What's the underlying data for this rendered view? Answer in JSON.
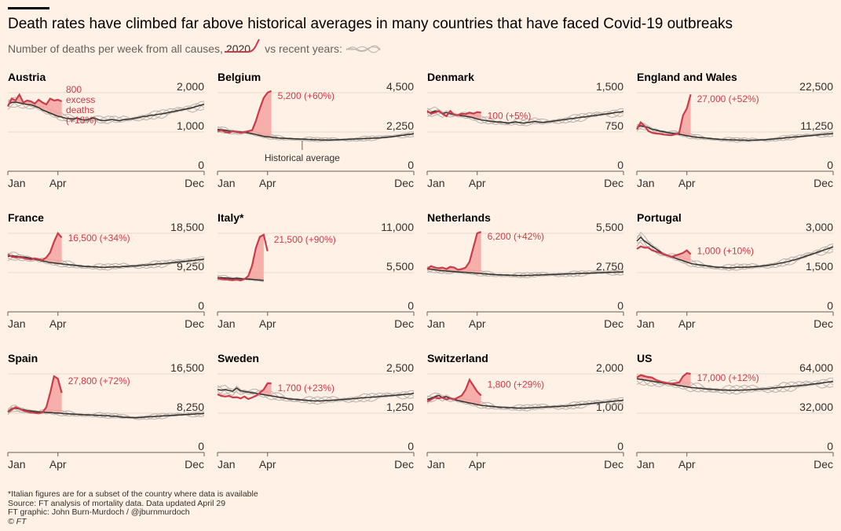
{
  "header": {
    "title": "Death rates have climbed far above historical averages in many countries that have faced Covid-19 outbreaks",
    "subtitle_prefix": "Number of deaths per week from all causes,",
    "subtitle_2020": "2020",
    "subtitle_suffix": "vs recent years:"
  },
  "colors": {
    "background": "#fff1e5",
    "line_2020": "#cc3b4a",
    "excess_fill": "#f5a3a0",
    "average": "#33302e",
    "recent_years": "#b9b2ad"
  },
  "footer": {
    "note": "*Italian figures are for a subset of the country where data is available",
    "source": "Source: FT analysis of mortality data. Data updated April 29",
    "graphic": "FT graphic: John Burn-Murdoch / @jburnmurdoch",
    "copyright": "© FT"
  },
  "chart_data": [
    {
      "type": "line",
      "title": "Austria",
      "x_ticks": [
        "Jan",
        "Apr",
        "Dec"
      ],
      "y_ticks": [
        "2,000",
        "1,000",
        "0"
      ],
      "ylim": [
        0,
        2000
      ],
      "annotation": "800\nexcess\ndeaths\n(+13%)",
      "average": [
        1700,
        1750,
        1760,
        1740,
        1720,
        1700,
        1690,
        1660,
        1620,
        1560,
        1520,
        1480,
        1440,
        1400,
        1380,
        1350,
        1340,
        1330,
        1350,
        1320,
        1300,
        1320,
        1360,
        1330,
        1300,
        1290,
        1300,
        1320,
        1300,
        1290,
        1310,
        1320,
        1330,
        1350,
        1370,
        1390,
        1400,
        1420,
        1430,
        1450,
        1460,
        1480,
        1500,
        1520,
        1540,
        1560,
        1580,
        1600,
        1620,
        1650,
        1680,
        1700
      ],
      "y2020": [
        1650,
        1850,
        1800,
        1950,
        1750,
        1800,
        1780,
        1720,
        1820,
        1750,
        1700,
        1850,
        1800,
        1820,
        1780
      ]
    },
    {
      "type": "line",
      "title": "Belgium",
      "x_ticks": [
        "Jan",
        "Apr",
        "Dec"
      ],
      "y_ticks": [
        "4,500",
        "2,250",
        "0"
      ],
      "ylim": [
        0,
        4500
      ],
      "annotation": "5,200 (+60%)",
      "avg_label": "Historical average",
      "average": [
        2400,
        2380,
        2350,
        2300,
        2280,
        2260,
        2250,
        2230,
        2200,
        2150,
        2100,
        2050,
        2000,
        1980,
        1950,
        1930,
        1900,
        1890,
        1880,
        1870,
        1860,
        1850,
        1840,
        1830,
        1820,
        1810,
        1800,
        1790,
        1790,
        1790,
        1800,
        1800,
        1810,
        1820,
        1830,
        1840,
        1850,
        1860,
        1870,
        1880,
        1890,
        1900,
        1910,
        1930,
        1950,
        1970,
        2000,
        2030,
        2060,
        2090,
        2120,
        2150
      ],
      "y2020": [
        2300,
        2350,
        2250,
        2200,
        2300,
        2250,
        2200,
        2250,
        2300,
        2350,
        2900,
        3600,
        4200,
        4500,
        4600
      ]
    },
    {
      "type": "line",
      "title": "Denmark",
      "x_ticks": [
        "Jan",
        "Apr",
        "Dec"
      ],
      "y_ticks": [
        "1,500",
        "750",
        "0"
      ],
      "ylim": [
        0,
        1500
      ],
      "annotation": "100 (+5%)",
      "average": [
        1130,
        1120,
        1150,
        1140,
        1100,
        1120,
        1100,
        1080,
        1070,
        1060,
        1050,
        1040,
        1020,
        1000,
        980,
        970,
        960,
        950,
        940,
        940,
        930,
        920,
        930,
        940,
        930,
        920,
        930,
        940,
        950,
        940,
        930,
        940,
        950,
        960,
        970,
        980,
        990,
        1000,
        1010,
        1020,
        1030,
        1040,
        1050,
        1060,
        1070,
        1080,
        1090,
        1100,
        1110,
        1120,
        1130,
        1140
      ],
      "y2020": [
        1150,
        1100,
        1120,
        1150,
        1100,
        1050,
        1150,
        1080,
        1070,
        1100,
        1090,
        1120,
        1100,
        1130,
        1120
      ]
    },
    {
      "type": "line",
      "title": "England and Wales",
      "x_ticks": [
        "Jan",
        "Apr",
        "Dec"
      ],
      "y_ticks": [
        "22,500",
        "11,250",
        "0"
      ],
      "ylim": [
        0,
        22500
      ],
      "annotation": "27,000 (+52%)",
      "average": [
        12500,
        13000,
        12800,
        12500,
        12000,
        11800,
        11500,
        11300,
        11100,
        10900,
        10800,
        10600,
        10400,
        10200,
        10000,
        9800,
        9700,
        9600,
        9500,
        9400,
        9300,
        9200,
        9100,
        9100,
        9000,
        9000,
        8900,
        8900,
        8900,
        8800,
        8900,
        8900,
        9000,
        9000,
        9100,
        9200,
        9300,
        9400,
        9500,
        9600,
        9700,
        9800,
        9900,
        10000,
        10100,
        10200,
        10300,
        10400,
        10500,
        10600,
        10700,
        10800
      ],
      "y2020": [
        12000,
        14000,
        13000,
        11500,
        11000,
        10800,
        10700,
        10500,
        10400,
        10300,
        10600,
        11000,
        16000,
        18000,
        22000
      ]
    },
    {
      "type": "line",
      "title": "France",
      "x_ticks": [
        "Jan",
        "Apr",
        "Dec"
      ],
      "y_ticks": [
        "18,500",
        "9,250",
        "0"
      ],
      "ylim": [
        0,
        18500
      ],
      "annotation": "16,500 (+34%)",
      "average": [
        13000,
        13200,
        13100,
        13000,
        12900,
        12800,
        12600,
        12400,
        12200,
        12000,
        11800,
        11600,
        11500,
        11400,
        11300,
        11200,
        11100,
        11000,
        10900,
        10800,
        10700,
        10700,
        10600,
        10600,
        10500,
        10500,
        10500,
        10600,
        10600,
        10600,
        10700,
        10700,
        10800,
        10800,
        10900,
        11000,
        11000,
        11100,
        11200,
        11300,
        11300,
        11400,
        11500,
        11600,
        11700,
        11800,
        11900,
        12000,
        12100,
        12200,
        12300,
        12400
      ],
      "y2020": [
        13500,
        13000,
        12800,
        12900,
        12700,
        12500,
        12300,
        12600,
        12400,
        12200,
        12800,
        14000,
        16500,
        18500,
        17500
      ]
    },
    {
      "type": "line",
      "title": "Italy*",
      "x_ticks": [
        "Jan",
        "Apr",
        "Dec"
      ],
      "y_ticks": [
        "11,000",
        "5,500",
        "0"
      ],
      "ylim": [
        0,
        11000
      ],
      "annotation": "21,500 (+90%)",
      "average": [
        4800,
        4750,
        4750,
        4700,
        4650,
        4700,
        4650,
        4600,
        4600,
        4550,
        4500,
        4450,
        4400
      ],
      "y2020": [
        4700,
        4600,
        4550,
        4500,
        4450,
        4500,
        4400,
        4600,
        5000,
        6500,
        9000,
        10500,
        10800,
        8500
      ]
    },
    {
      "type": "line",
      "title": "Netherlands",
      "x_ticks": [
        "Jan",
        "Apr",
        "Dec"
      ],
      "y_ticks": [
        "5,500",
        "2,750",
        "0"
      ],
      "ylim": [
        0,
        5500
      ],
      "annotation": "6,200 (+42%)",
      "average": [
        3000,
        2980,
        2950,
        2900,
        2880,
        2860,
        2840,
        2820,
        2800,
        2780,
        2760,
        2740,
        2720,
        2700,
        2680,
        2660,
        2640,
        2620,
        2600,
        2590,
        2580,
        2570,
        2560,
        2550,
        2540,
        2540,
        2550,
        2560,
        2570,
        2580,
        2590,
        2600,
        2610,
        2620,
        2630,
        2640,
        2650,
        2660,
        2670,
        2680,
        2690,
        2700,
        2710,
        2720,
        2730,
        2740,
        2750,
        2760,
        2770,
        2780,
        2790,
        2800
      ],
      "y2020": [
        3000,
        3200,
        3100,
        3050,
        3100,
        3000,
        3150,
        3100,
        2950,
        3000,
        3100,
        3500,
        4500,
        5500,
        5600
      ]
    },
    {
      "type": "line",
      "title": "Portugal",
      "x_ticks": [
        "Jan",
        "Apr",
        "Dec"
      ],
      "y_ticks": [
        "3,000",
        "1,500",
        "0"
      ],
      "ylim": [
        0,
        3000
      ],
      "annotation": "1,000 (+10%)",
      "average": [
        2700,
        2850,
        2700,
        2600,
        2500,
        2400,
        2300,
        2200,
        2150,
        2100,
        2050,
        2000,
        1950,
        1900,
        1850,
        1820,
        1800,
        1780,
        1760,
        1740,
        1720,
        1700,
        1700,
        1690,
        1680,
        1690,
        1700,
        1700,
        1700,
        1710,
        1720,
        1730,
        1740,
        1760,
        1780,
        1800,
        1820,
        1850,
        1880,
        1910,
        1950,
        1990,
        2030,
        2080,
        2130,
        2180,
        2230,
        2280,
        2330,
        2380,
        2430,
        2480
      ],
      "y2020": [
        2400,
        2500,
        2450,
        2450,
        2350,
        2300,
        2250,
        2200,
        2150,
        2100,
        2150,
        2200,
        2250,
        2350,
        2200
      ]
    },
    {
      "type": "line",
      "title": "Spain",
      "x_ticks": [
        "Jan",
        "Apr",
        "Dec"
      ],
      "y_ticks": [
        "16,500",
        "8,250",
        "0"
      ],
      "ylim": [
        0,
        16500
      ],
      "annotation": "27,800 (+72%)",
      "average": [
        8600,
        9200,
        9300,
        9100,
        9000,
        8800,
        8700,
        8600,
        8500,
        8500,
        8400,
        8400,
        8300,
        8300,
        8200,
        8150,
        8100,
        8050,
        8000,
        7950,
        7900,
        7900,
        7850,
        7800,
        7800,
        7700,
        7700,
        7600,
        7600,
        7500,
        7400,
        7400,
        7350,
        7300,
        7350,
        7400,
        7450,
        7500,
        7550,
        7600,
        7650,
        7700,
        7750,
        7800,
        7850,
        7900,
        7950,
        8000,
        8050,
        8100,
        8150,
        8200
      ],
      "y2020": [
        8500,
        9000,
        9500,
        9200,
        8800,
        8600,
        8400,
        8300,
        8200,
        8400,
        9500,
        12500,
        16000,
        15500,
        12500
      ]
    },
    {
      "type": "line",
      "title": "Sweden",
      "x_ticks": [
        "Jan",
        "Apr",
        "Dec"
      ],
      "y_ticks": [
        "2,500",
        "1,250",
        "0"
      ],
      "ylim": [
        0,
        2500
      ],
      "annotation": "1,700 (+23%)",
      "average": [
        2000,
        1980,
        2000,
        1970,
        1950,
        2050,
        1960,
        1940,
        1920,
        1900,
        1880,
        1860,
        1840,
        1820,
        1800,
        1780,
        1760,
        1740,
        1720,
        1700,
        1690,
        1680,
        1670,
        1660,
        1650,
        1640,
        1640,
        1640,
        1650,
        1660,
        1660,
        1670,
        1680,
        1690,
        1700,
        1710,
        1720,
        1730,
        1740,
        1750,
        1760,
        1770,
        1780,
        1790,
        1800,
        1810,
        1820,
        1830,
        1840,
        1850,
        1860,
        1880
      ],
      "y2020": [
        1850,
        1800,
        1780,
        1800,
        1750,
        1760,
        1720,
        1780,
        1700,
        1750,
        1800,
        1900,
        2000,
        2200,
        2200
      ]
    },
    {
      "type": "line",
      "title": "Switzerland",
      "x_ticks": [
        "Jan",
        "Apr",
        "Dec"
      ],
      "y_ticks": [
        "2,000",
        "1,000",
        "0"
      ],
      "ylim": [
        0,
        2000
      ],
      "annotation": "1,800 (+29%)",
      "average": [
        1350,
        1380,
        1420,
        1450,
        1400,
        1420,
        1380,
        1350,
        1320,
        1300,
        1280,
        1260,
        1240,
        1220,
        1200,
        1190,
        1180,
        1170,
        1160,
        1150,
        1150,
        1140,
        1140,
        1130,
        1130,
        1130,
        1130,
        1140,
        1140,
        1150,
        1150,
        1160,
        1160,
        1170,
        1170,
        1180,
        1180,
        1190,
        1200,
        1210,
        1220,
        1230,
        1240,
        1250,
        1260,
        1270,
        1280,
        1290,
        1300,
        1310,
        1320,
        1330
      ],
      "y2020": [
        1300,
        1350,
        1400,
        1380,
        1400,
        1350,
        1380,
        1350,
        1400,
        1450,
        1600,
        1850,
        1700,
        1550,
        1450
      ]
    },
    {
      "type": "line",
      "title": "US",
      "x_ticks": [
        "Jan",
        "Apr",
        "Dec"
      ],
      "y_ticks": [
        "64,000",
        "32,000",
        "0"
      ],
      "ylim": [
        0,
        64000
      ],
      "annotation": "17,000 (+12%)",
      "average": [
        60000,
        59500,
        59000,
        58500,
        58000,
        57500,
        57000,
        56500,
        56000,
        55500,
        55000,
        54500,
        54000,
        53500,
        53000,
        52700,
        52400,
        52100,
        51800,
        51500,
        51300,
        51100,
        50900,
        50800,
        50700,
        50700,
        50700,
        50800,
        50900,
        51000,
        51200,
        51400,
        51600,
        51800,
        52000,
        52300,
        52600,
        52900,
        53200,
        53500,
        53800,
        54100,
        54400,
        54700,
        55000,
        55400,
        55800,
        56200,
        56600,
        57000,
        57400,
        57800
      ],
      "y2020": [
        61000,
        63000,
        62000,
        61500,
        61000,
        59000,
        58000,
        57000,
        56500,
        56000,
        56500,
        57000,
        62000,
        64500,
        64000
      ]
    }
  ]
}
